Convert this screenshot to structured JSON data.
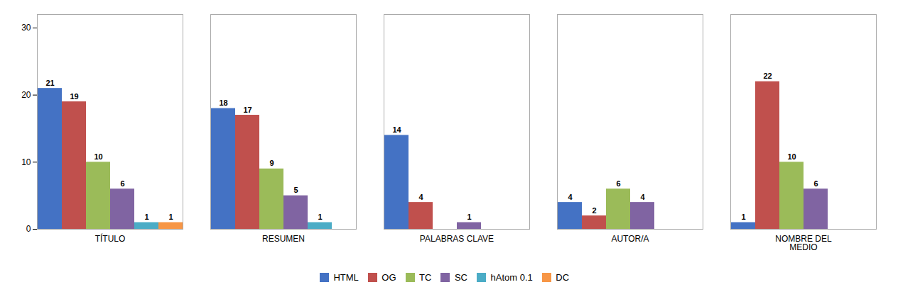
{
  "chart_data": {
    "type": "bar",
    "categories": [
      "TÍTULO",
      "RESUMEN",
      "PALABRAS CLAVE",
      "AUTOR/A",
      "NOMBRE DEL\nMEDIO"
    ],
    "series": [
      {
        "name": "HTML",
        "color": "#4472C4",
        "values": [
          21,
          18,
          14,
          4,
          1
        ]
      },
      {
        "name": "OG",
        "color": "#C0504D",
        "values": [
          19,
          17,
          4,
          2,
          22
        ]
      },
      {
        "name": "TC",
        "color": "#9BBB59",
        "values": [
          10,
          9,
          0,
          6,
          10
        ]
      },
      {
        "name": "SC",
        "color": "#8064A2",
        "values": [
          6,
          5,
          1,
          4,
          6
        ]
      },
      {
        "name": "hAtom 0.1",
        "color": "#4BACC6",
        "values": [
          1,
          1,
          0,
          0,
          0
        ]
      },
      {
        "name": "DC",
        "color": "#F79646",
        "values": [
          1,
          0,
          0,
          0,
          0
        ]
      }
    ],
    "ylim": [
      0,
      32
    ],
    "yticks": [
      0,
      10,
      20,
      30
    ],
    "grid": false,
    "legend": "bottom",
    "data_labels": true
  }
}
